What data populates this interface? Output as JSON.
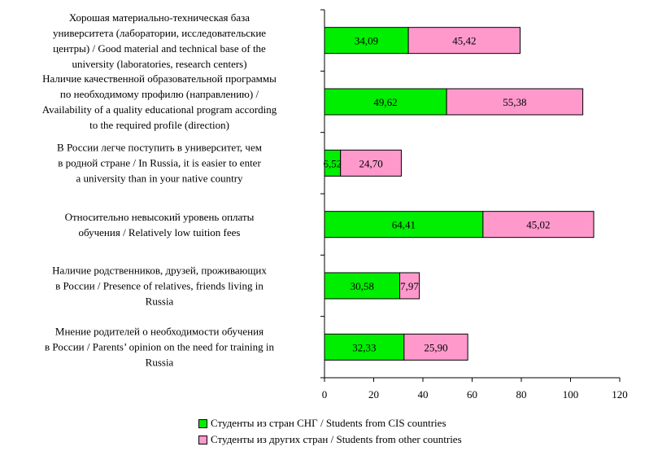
{
  "chart_data": {
    "type": "bar",
    "orientation": "horizontal",
    "stacked": true,
    "categories": [
      [
        "Хорошая материально-техническая база",
        "университета (лаборатории, исследовательские",
        "центры) / Good material and technical base of the",
        "university (laboratories, research centers)"
      ],
      [
        "Наличие качественной образовательной программы",
        "по необходимому профилю (направлению) /",
        "Availability of a quality educational program according",
        "to the required profile (direction)"
      ],
      [
        "В России легче поступить в университет, чем",
        "в родной стране / In Russia, it is easier to enter",
        "a university than in your native country"
      ],
      [
        "Относительно невысокий уровень оплаты",
        "обучения / Relatively low tuition fees"
      ],
      [
        "Наличие родственников, друзей, проживающих",
        "в России / Presence of relatives, friends living in",
        "Russia"
      ],
      [
        "Мнение родителей о необходимости обучения",
        "в России / Parents’ opinion on the need for training in",
        "Russia"
      ]
    ],
    "series": [
      {
        "name": "Студенты из стран СНГ / Students from CIS countries",
        "color": "#00ee00",
        "values": [
          34.09,
          49.62,
          6.52,
          64.41,
          30.58,
          32.33
        ],
        "labels": [
          "34,09",
          "49,62",
          "6,52",
          "64,41",
          "30,58",
          "32,33"
        ]
      },
      {
        "name": "Студенты из других стран / Students from other countries",
        "color": "#ff99cc",
        "values": [
          45.42,
          55.38,
          24.7,
          45.02,
          7.97,
          25.9
        ],
        "labels": [
          "45,42",
          "55,38",
          "24,70",
          "45,02",
          "7,97",
          "25,90"
        ]
      }
    ],
    "xlim": [
      0,
      120
    ],
    "xticks": [
      "0",
      "20",
      "40",
      "60",
      "80",
      "100",
      "120"
    ],
    "grid": false,
    "legend_position": "bottom"
  }
}
